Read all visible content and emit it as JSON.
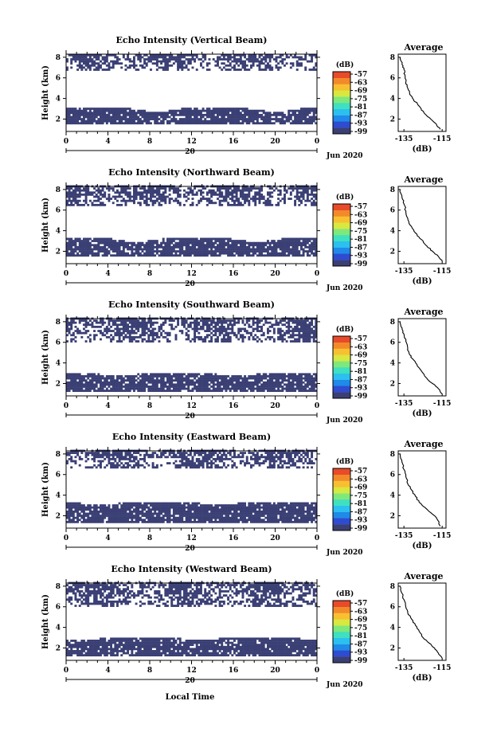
{
  "chart_data": [
    {
      "type": "heatmap",
      "title": "Echo Intensity (Vertical Beam)",
      "ylabel": "Height (km)",
      "x_ticks": [
        "0",
        "4",
        "8",
        "12",
        "16",
        "20",
        "0"
      ],
      "y_ticks": [
        "2",
        "4",
        "6",
        "8"
      ],
      "date_label": "20",
      "month_label": "Jun 2020",
      "xlim": [
        0,
        24
      ],
      "ylim": [
        0.8,
        8.3
      ],
      "colorbar": {
        "unit": "(dB)",
        "ticks": [
          "-57",
          "-63",
          "-69",
          "-75",
          "-81",
          "-87",
          "-93",
          "-99"
        ]
      },
      "cloud_layers_km": [
        [
          1.5,
          3.0
        ],
        [
          6.7,
          8.3
        ]
      ],
      "average": {
        "title": "Average",
        "xlabel": "(dB)",
        "x_ticks": [
          "-135",
          "-115"
        ],
        "y_ticks": [
          "2",
          "4",
          "6",
          "8"
        ],
        "xlim": [
          -138,
          -113
        ],
        "ylim": [
          0.8,
          8.3
        ],
        "profile": [
          [
            -137,
            8.0
          ],
          [
            -136,
            7.3
          ],
          [
            -135,
            6.8
          ],
          [
            -134.5,
            6.3
          ],
          [
            -134,
            5.6
          ],
          [
            -133,
            5.0
          ],
          [
            -132,
            4.4
          ],
          [
            -130,
            3.9
          ],
          [
            -128,
            3.5
          ],
          [
            -126,
            3.0
          ],
          [
            -124,
            2.5
          ],
          [
            -121,
            2.0
          ],
          [
            -118,
            1.5
          ],
          [
            -116,
            1.0
          ]
        ]
      }
    },
    {
      "type": "heatmap",
      "title": "Echo Intensity (Northward Beam)",
      "ylabel": "Height (km)",
      "x_ticks": [
        "0",
        "4",
        "8",
        "12",
        "16",
        "20",
        "0"
      ],
      "y_ticks": [
        "2",
        "4",
        "6",
        "8"
      ],
      "date_label": "20",
      "month_label": "Jun 2020",
      "xlim": [
        0,
        24
      ],
      "ylim": [
        0.8,
        8.3
      ],
      "colorbar": {
        "unit": "(dB)",
        "ticks": [
          "-57",
          "-63",
          "-69",
          "-75",
          "-81",
          "-87",
          "-93",
          "-99"
        ]
      },
      "cloud_layers_km": [
        [
          1.5,
          3.2
        ],
        [
          6.4,
          8.3
        ]
      ],
      "average": {
        "title": "Average",
        "xlabel": "(dB)",
        "x_ticks": [
          "-135",
          "-115"
        ],
        "y_ticks": [
          "2",
          "4",
          "6",
          "8"
        ],
        "xlim": [
          -138,
          -113
        ],
        "ylim": [
          0.8,
          8.3
        ],
        "profile": [
          [
            -137,
            8.0
          ],
          [
            -136,
            7.2
          ],
          [
            -135,
            6.6
          ],
          [
            -134,
            5.9
          ],
          [
            -133,
            5.2
          ],
          [
            -132,
            4.6
          ],
          [
            -130,
            4.1
          ],
          [
            -128,
            3.5
          ],
          [
            -125,
            3.0
          ],
          [
            -123,
            2.5
          ],
          [
            -120,
            2.0
          ],
          [
            -117,
            1.5
          ],
          [
            -115,
            1.0
          ]
        ]
      }
    },
    {
      "type": "heatmap",
      "title": "Echo Intensity (Southward Beam)",
      "ylabel": "Height (km)",
      "x_ticks": [
        "0",
        "4",
        "8",
        "12",
        "16",
        "20",
        "0"
      ],
      "y_ticks": [
        "2",
        "4",
        "6",
        "8"
      ],
      "date_label": "20",
      "month_label": "Jun 2020",
      "xlim": [
        0,
        24
      ],
      "ylim": [
        0.8,
        8.3
      ],
      "colorbar": {
        "unit": "(dB)",
        "ticks": [
          "-57",
          "-63",
          "-69",
          "-75",
          "-81",
          "-87",
          "-93",
          "-99"
        ]
      },
      "cloud_layers_km": [
        [
          1.2,
          3.0
        ],
        [
          6.0,
          8.3
        ]
      ],
      "average": {
        "title": "Average",
        "xlabel": "(dB)",
        "x_ticks": [
          "-135",
          "-115"
        ],
        "y_ticks": [
          "2",
          "4",
          "6",
          "8"
        ],
        "xlim": [
          -138,
          -113
        ],
        "ylim": [
          0.8,
          8.3
        ],
        "profile": [
          [
            -137,
            8.0
          ],
          [
            -136,
            7.4
          ],
          [
            -135,
            6.8
          ],
          [
            -134,
            6.1
          ],
          [
            -133,
            5.4
          ],
          [
            -132,
            4.8
          ],
          [
            -130,
            4.3
          ],
          [
            -128,
            3.7
          ],
          [
            -125,
            3.0
          ],
          [
            -123,
            2.5
          ],
          [
            -120,
            2.0
          ],
          [
            -117,
            1.5
          ],
          [
            -115,
            1.0
          ]
        ]
      }
    },
    {
      "type": "heatmap",
      "title": "Echo Intensity (Eastward Beam)",
      "ylabel": "Height (km)",
      "x_ticks": [
        "0",
        "4",
        "8",
        "12",
        "16",
        "20",
        "0"
      ],
      "y_ticks": [
        "2",
        "4",
        "6",
        "8"
      ],
      "date_label": "20",
      "month_label": "Jun 2020",
      "xlim": [
        0,
        24
      ],
      "ylim": [
        0.8,
        8.3
      ],
      "colorbar": {
        "unit": "(dB)",
        "ticks": [
          "-57",
          "-63",
          "-69",
          "-75",
          "-81",
          "-87",
          "-93",
          "-99"
        ]
      },
      "cloud_layers_km": [
        [
          1.3,
          3.3
        ],
        [
          6.6,
          8.3
        ]
      ],
      "average": {
        "title": "Average",
        "xlabel": "(dB)",
        "x_ticks": [
          "-135",
          "-115"
        ],
        "y_ticks": [
          "2",
          "4",
          "6",
          "8"
        ],
        "xlim": [
          -138,
          -113
        ],
        "ylim": [
          0.8,
          8.3
        ],
        "profile": [
          [
            -137,
            8.0
          ],
          [
            -136,
            7.2
          ],
          [
            -135,
            6.5
          ],
          [
            -134,
            5.8
          ],
          [
            -133,
            5.1
          ],
          [
            -131,
            4.5
          ],
          [
            -129,
            3.9
          ],
          [
            -127,
            3.3
          ],
          [
            -124,
            2.8
          ],
          [
            -121,
            2.3
          ],
          [
            -118,
            1.8
          ],
          [
            -116,
            1.0
          ]
        ]
      }
    },
    {
      "type": "heatmap",
      "title": "Echo Intensity (Westward Beam)",
      "ylabel": "Height (km)",
      "x_ticks": [
        "0",
        "4",
        "8",
        "12",
        "16",
        "20",
        "0"
      ],
      "y_ticks": [
        "2",
        "4",
        "6",
        "8"
      ],
      "date_label": "20",
      "month_label": "Jun 2020",
      "xlim": [
        0,
        24
      ],
      "ylim": [
        0.8,
        8.3
      ],
      "colorbar": {
        "unit": "(dB)",
        "ticks": [
          "-57",
          "-63",
          "-69",
          "-75",
          "-81",
          "-87",
          "-93",
          "-99"
        ]
      },
      "cloud_layers_km": [
        [
          1.2,
          3.0
        ],
        [
          6.0,
          8.3
        ]
      ],
      "average": {
        "title": "Average",
        "xlabel": "(dB)",
        "x_ticks": [
          "-135",
          "-115"
        ],
        "y_ticks": [
          "2",
          "4",
          "6",
          "8"
        ],
        "xlim": [
          -138,
          -113
        ],
        "ylim": [
          0.8,
          8.3
        ],
        "profile": [
          [
            -137,
            8.0
          ],
          [
            -136,
            7.3
          ],
          [
            -135,
            6.7
          ],
          [
            -134,
            6.0
          ],
          [
            -133,
            5.4
          ],
          [
            -131,
            4.8
          ],
          [
            -129,
            4.2
          ],
          [
            -127,
            3.6
          ],
          [
            -125,
            3.0
          ],
          [
            -122,
            2.5
          ],
          [
            -119,
            2.0
          ],
          [
            -117,
            1.5
          ],
          [
            -115,
            1.0
          ]
        ]
      }
    }
  ],
  "figure": {
    "xlabel": "Local Time",
    "colors": {
      "cloud": "#3a3f74",
      "colorbar": [
        "#3a3f74",
        "#2f4bd0",
        "#1f8ae8",
        "#2bc0f0",
        "#3fe0c0",
        "#7fe87a",
        "#d8e840",
        "#f8c030",
        "#f28a2a",
        "#e84a2a"
      ]
    }
  }
}
